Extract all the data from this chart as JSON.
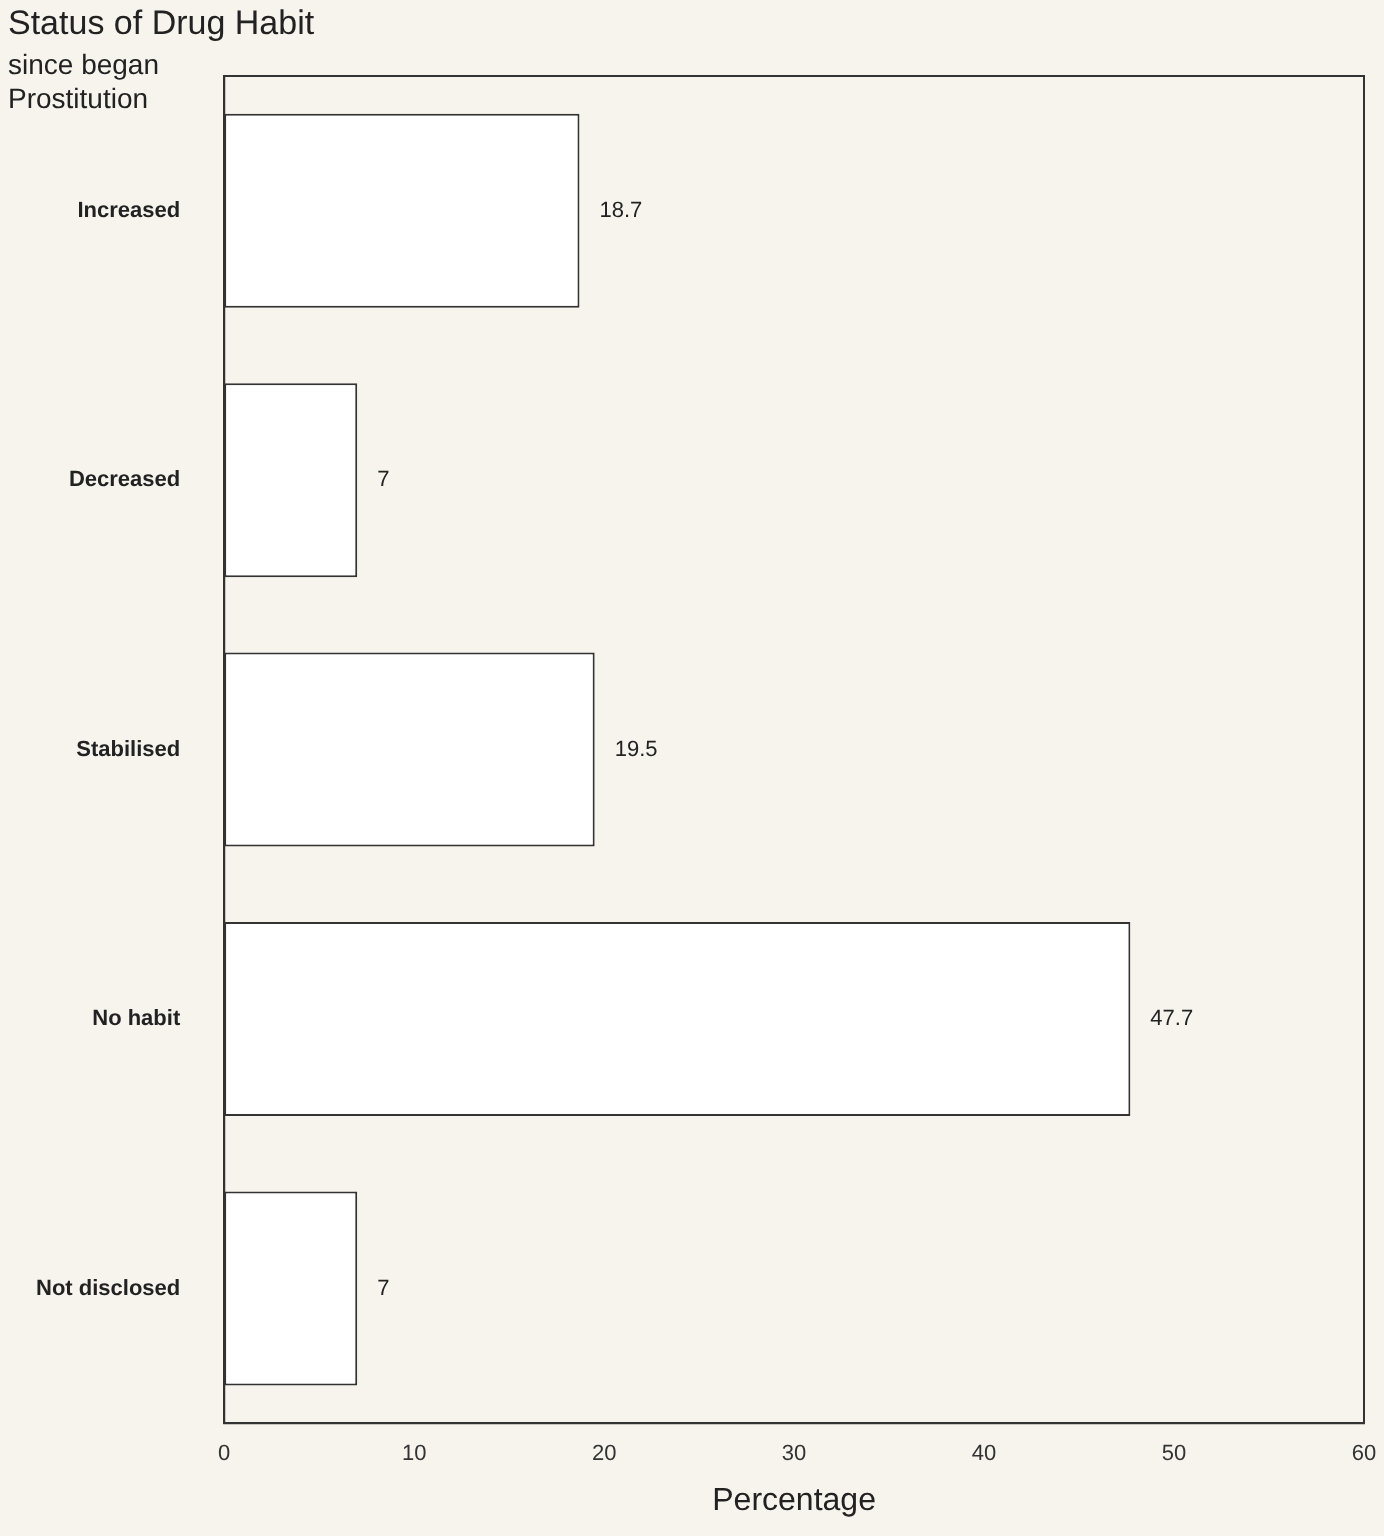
{
  "chart_data": {
    "type": "bar",
    "orientation": "horizontal",
    "title": "Status of Drug Habit",
    "subtitle": "since began Prostitution",
    "xlabel": "Percentage",
    "categories": [
      "Increased",
      "Decreased",
      "Stabilised",
      "No habit",
      "Not disclosed"
    ],
    "values": [
      18.7,
      7,
      19.5,
      47.7,
      7
    ],
    "color": "#ffffff",
    "xlim": [
      0,
      60
    ],
    "xticks": [
      0,
      10,
      20,
      30,
      40,
      50,
      60
    ],
    "grid": false,
    "data_labels": true
  }
}
